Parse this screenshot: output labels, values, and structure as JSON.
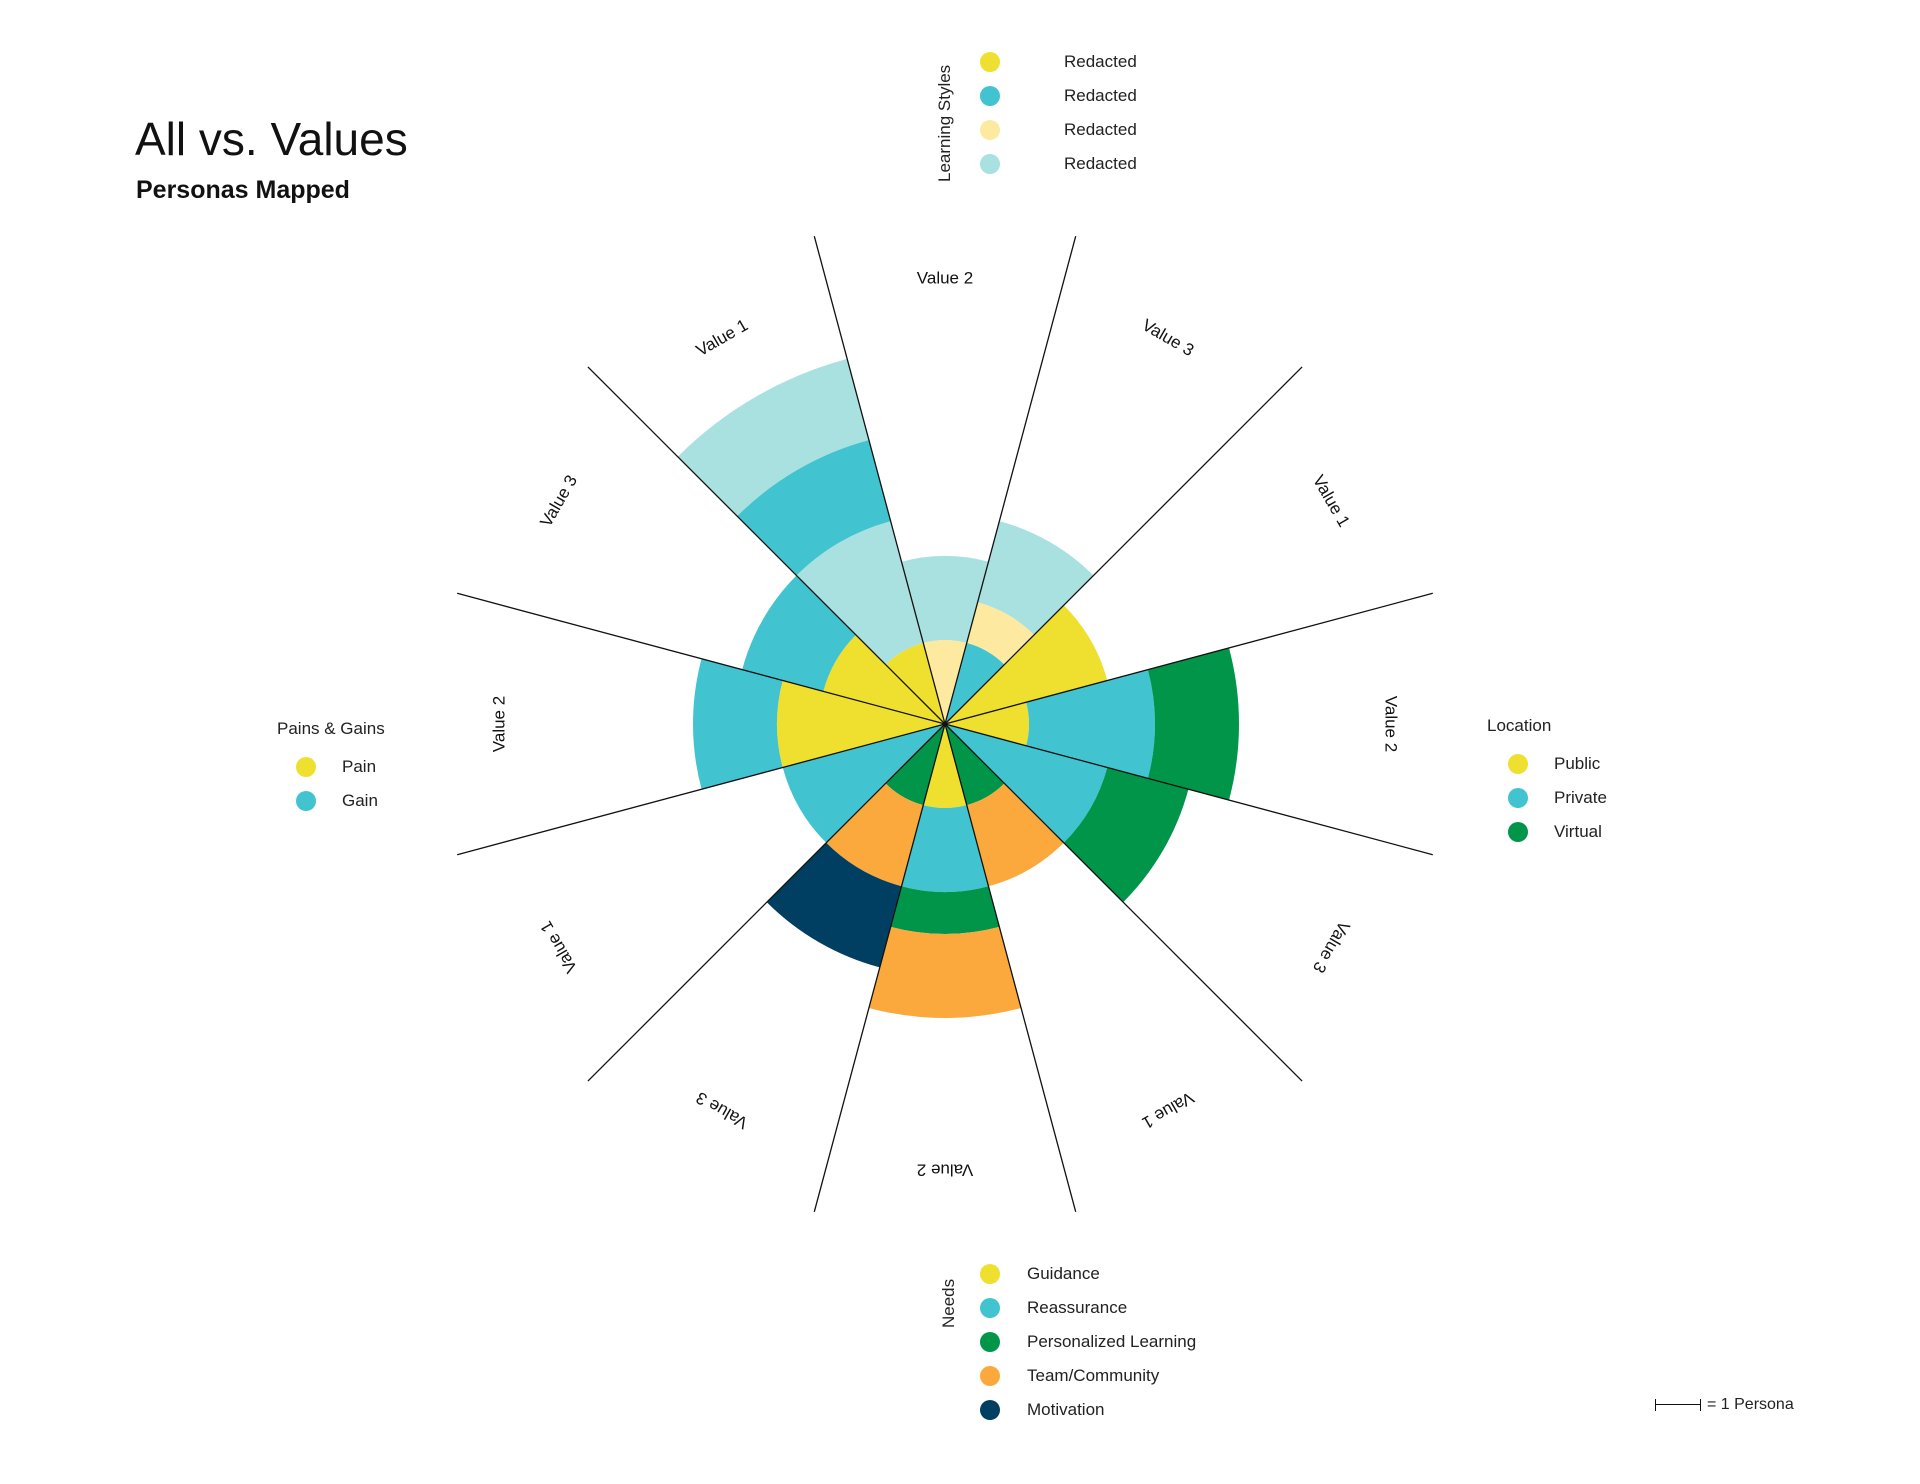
{
  "title": "All vs. Values",
  "subtitle": "Personas Mapped",
  "legends": {
    "learning_styles": {
      "title": "Learning Styles",
      "items": [
        {
          "label": "Redacted",
          "color": "#efdf2f"
        },
        {
          "label": "Redacted",
          "color": "#42c3d0"
        },
        {
          "label": "Redacted",
          "color": "#fde9a0"
        },
        {
          "label": "Redacted",
          "color": "#a8e1e0"
        }
      ]
    },
    "pains_gains": {
      "title": "Pains & Gains",
      "items": [
        {
          "label": "Pain",
          "color": "#efdf2f"
        },
        {
          "label": "Gain",
          "color": "#42c3d0"
        }
      ]
    },
    "location": {
      "title": "Location",
      "items": [
        {
          "label": "Public",
          "color": "#efdf2f"
        },
        {
          "label": "Private",
          "color": "#42c3d0"
        },
        {
          "label": "Virtual",
          "color": "#009549"
        }
      ]
    },
    "needs": {
      "title": "Needs",
      "items": [
        {
          "label": "Guidance",
          "color": "#efdf2f"
        },
        {
          "label": "Reassurance",
          "color": "#42c3d0"
        },
        {
          "label": "Personalized Learning",
          "color": "#009549"
        },
        {
          "label": "Team/Community",
          "color": "#fba93c"
        },
        {
          "label": "Motivation",
          "color": "#003f61"
        }
      ]
    }
  },
  "scale_note": "= 1 Persona",
  "chart_data": {
    "type": "polar-stacked-bar",
    "unit": "Persona",
    "sectors": [
      {
        "label": "Value 1",
        "group": "Learning Styles",
        "segments": [
          {
            "category": "Guidance-yellow",
            "value": 1
          },
          {
            "category": "Redacted-4",
            "value": 1.5
          },
          {
            "category": "Redacted-2",
            "value": 1.0
          },
          {
            "category": "Redacted-4",
            "value": 1.0
          }
        ]
      },
      {
        "label": "Value 2",
        "group": "Learning Styles",
        "segments": [
          {
            "category": "Redacted-3",
            "value": 1.0
          },
          {
            "category": "Redacted-4",
            "value": 1.0
          }
        ]
      },
      {
        "label": "Value 3",
        "group": "Learning Styles",
        "segments": [
          {
            "category": "Redacted-2",
            "value": 1.0
          },
          {
            "category": "Redacted-3",
            "value": 0.5
          },
          {
            "category": "Redacted-4",
            "value": 1.0
          }
        ]
      },
      {
        "label": "Value 1",
        "group": "Location",
        "segments": [
          {
            "category": "Public",
            "value": 2.0
          }
        ]
      },
      {
        "label": "Value 2",
        "group": "Location",
        "segments": [
          {
            "category": "Public",
            "value": 1.0
          },
          {
            "category": "Private",
            "value": 1.5
          },
          {
            "category": "Virtual",
            "value": 1.0
          }
        ]
      },
      {
        "label": "Value 3",
        "group": "Location",
        "segments": [
          {
            "category": "Private",
            "value": 2.0
          },
          {
            "category": "Virtual",
            "value": 1.0
          }
        ]
      },
      {
        "label": "Value 1",
        "group": "Needs",
        "segments": [
          {
            "category": "Personalized Learning",
            "value": 1.0
          },
          {
            "category": "Team/Community",
            "value": 1.0
          }
        ]
      },
      {
        "label": "Value 2",
        "group": "Needs",
        "segments": [
          {
            "category": "Guidance",
            "value": 1.0
          },
          {
            "category": "Reassurance",
            "value": 1.0
          },
          {
            "category": "Personalized Learning",
            "value": 0.5
          },
          {
            "category": "Team/Community",
            "value": 1.0
          }
        ]
      },
      {
        "label": "Value 3",
        "group": "Needs",
        "segments": [
          {
            "category": "Personalized Learning",
            "value": 1.0
          },
          {
            "category": "Team/Community",
            "value": 1.0
          },
          {
            "category": "Motivation",
            "value": 1.0
          }
        ]
      },
      {
        "label": "Value 1",
        "group": "Pains & Gains",
        "segments": [
          {
            "category": "Gain",
            "value": 2.0
          }
        ]
      },
      {
        "label": "Value 2",
        "group": "Pains & Gains",
        "segments": [
          {
            "category": "Pain",
            "value": 2.0
          },
          {
            "category": "Gain",
            "value": 1.0
          }
        ]
      },
      {
        "label": "Value 3",
        "group": "Pains & Gains",
        "segments": [
          {
            "category": "Pain",
            "value": 1.5
          },
          {
            "category": "Gain",
            "value": 1.0
          }
        ]
      }
    ]
  }
}
